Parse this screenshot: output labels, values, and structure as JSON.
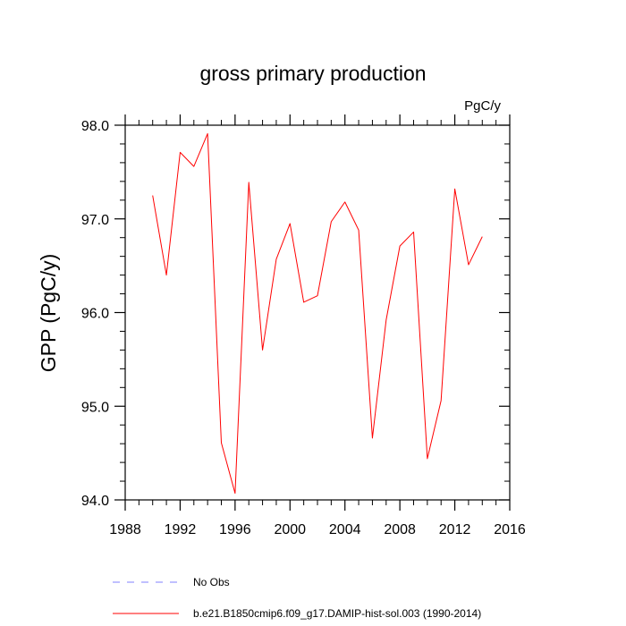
{
  "chart_data": {
    "type": "line",
    "title": "gross primary production",
    "units": "PgC/y",
    "xlabel": "",
    "ylabel": "GPP  (PgC/y)",
    "xlim": [
      1988,
      2016
    ],
    "ylim": [
      94.0,
      98.0
    ],
    "x_ticks": [
      1988,
      1992,
      1996,
      2000,
      2004,
      2008,
      2012,
      2016
    ],
    "x_tick_labels": [
      "1988",
      "1992",
      "1996",
      "2000",
      "2004",
      "2008",
      "2012",
      "2016"
    ],
    "y_ticks": [
      94.0,
      95.0,
      96.0,
      97.0,
      98.0
    ],
    "y_tick_labels": [
      "94.0",
      "95.0",
      "96.0",
      "97.0",
      "98.0"
    ],
    "grid": false,
    "legend_position": "bottom",
    "series": [
      {
        "name": "b.e21.B1850cmip6.f09_g17.DAMIP-hist-sol.003 (1990-2014)",
        "color": "#ff0000",
        "style": "solid",
        "x": [
          1990,
          1991,
          1992,
          1993,
          1994,
          1995,
          1996,
          1997,
          1998,
          1999,
          2000,
          2001,
          2002,
          2003,
          2004,
          2005,
          2006,
          2007,
          2008,
          2009,
          2010,
          2011,
          2012,
          2013,
          2014
        ],
        "y": [
          97.25,
          96.4,
          97.71,
          97.56,
          97.91,
          94.61,
          94.07,
          97.39,
          95.6,
          96.57,
          96.95,
          96.11,
          96.18,
          96.97,
          97.18,
          96.88,
          94.66,
          95.92,
          96.71,
          96.86,
          94.44,
          95.06,
          97.32,
          96.51,
          96.81
        ]
      }
    ],
    "legend": [
      {
        "label": "No Obs",
        "color": "#8080ff",
        "style": "dashed"
      },
      {
        "label": "b.e21.B1850cmip6.f09_g17.DAMIP-hist-sol.003 (1990-2014)",
        "color": "#ff0000",
        "style": "solid"
      }
    ]
  }
}
